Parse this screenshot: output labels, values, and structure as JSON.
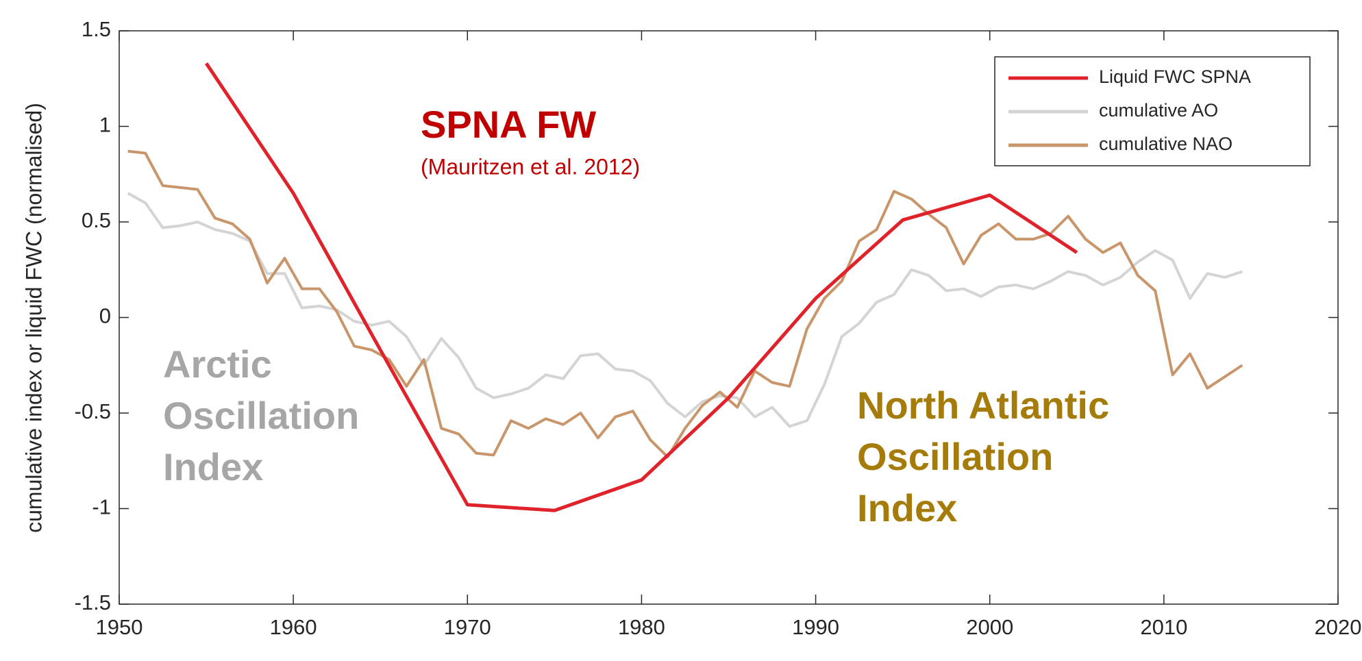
{
  "chart_data": {
    "type": "line",
    "ylabel": "cumulative index or liquid FWC (normalised)",
    "xlim": [
      1950,
      2020
    ],
    "xticks": [
      1950,
      1960,
      1970,
      1980,
      1990,
      2000,
      2010,
      2020
    ],
    "ylim": [
      -1.5,
      1.5
    ],
    "yticks": [
      -1.5,
      -1,
      -0.5,
      0,
      0.5,
      1,
      1.5
    ],
    "grid": false,
    "legend": "upper right",
    "series": [
      {
        "name": "Liquid FWC SPNA",
        "color": "#e0232b",
        "x": [
          1955,
          1960,
          1965,
          1970,
          1975,
          1980,
          1985,
          1990,
          1995,
          2000,
          2005
        ],
        "values": [
          1.33,
          0.65,
          -0.17,
          -0.98,
          -1.01,
          -0.85,
          -0.42,
          0.1,
          0.51,
          0.64,
          0.34
        ]
      },
      {
        "name": "cumulative AO",
        "color": "#d4d4d4",
        "x": [
          1950.5,
          1951.5,
          1952.5,
          1953.5,
          1954.5,
          1955.5,
          1956.5,
          1957.5,
          1958.5,
          1959.5,
          1960.5,
          1961.5,
          1962.5,
          1963.5,
          1964.5,
          1965.5,
          1966.5,
          1967.5,
          1968.5,
          1969.5,
          1970.5,
          1971.5,
          1972.5,
          1973.5,
          1974.5,
          1975.5,
          1976.5,
          1977.5,
          1978.5,
          1979.5,
          1980.5,
          1981.5,
          1982.5,
          1983.5,
          1984.5,
          1985.5,
          1986.5,
          1987.5,
          1988.5,
          1989.5,
          1990.5,
          1991.5,
          1992.5,
          1993.5,
          1994.5,
          1995.5,
          1996.5,
          1997.5,
          1998.5,
          1999.5,
          2000.5,
          2001.5,
          2002.5,
          2003.5,
          2004.5,
          2005.5,
          2006.5,
          2007.5,
          2008.5,
          2009.5,
          2010.5,
          2011.5,
          2012.5,
          2013.5,
          2014.5
        ],
        "values": [
          0.65,
          0.6,
          0.47,
          0.48,
          0.5,
          0.46,
          0.44,
          0.4,
          0.23,
          0.23,
          0.05,
          0.06,
          0.04,
          -0.02,
          -0.04,
          -0.02,
          -0.1,
          -0.25,
          -0.11,
          -0.21,
          -0.37,
          -0.42,
          -0.4,
          -0.37,
          -0.3,
          -0.32,
          -0.2,
          -0.19,
          -0.27,
          -0.28,
          -0.33,
          -0.45,
          -0.52,
          -0.44,
          -0.41,
          -0.42,
          -0.52,
          -0.47,
          -0.57,
          -0.54,
          -0.35,
          -0.1,
          -0.03,
          0.08,
          0.12,
          0.25,
          0.22,
          0.14,
          0.15,
          0.11,
          0.16,
          0.17,
          0.15,
          0.19,
          0.24,
          0.22,
          0.17,
          0.21,
          0.29,
          0.35,
          0.3,
          0.1,
          0.23,
          0.21,
          0.24
        ]
      },
      {
        "name": "cumulative NAO",
        "color": "#c8966a",
        "x": [
          1950.5,
          1951.5,
          1952.5,
          1953.5,
          1954.5,
          1955.5,
          1956.5,
          1957.5,
          1958.5,
          1959.5,
          1960.5,
          1961.5,
          1962.5,
          1963.5,
          1964.5,
          1965.5,
          1966.5,
          1967.5,
          1968.5,
          1969.5,
          1970.5,
          1971.5,
          1972.5,
          1973.5,
          1974.5,
          1975.5,
          1976.5,
          1977.5,
          1978.5,
          1979.5,
          1980.5,
          1981.5,
          1982.5,
          1983.5,
          1984.5,
          1985.5,
          1986.5,
          1987.5,
          1988.5,
          1989.5,
          1990.5,
          1991.5,
          1992.5,
          1993.5,
          1994.5,
          1995.5,
          1996.5,
          1997.5,
          1998.5,
          1999.5,
          2000.5,
          2001.5,
          2002.5,
          2003.5,
          2004.5,
          2005.5,
          2006.5,
          2007.5,
          2008.5,
          2009.5,
          2010.5,
          2011.5,
          2012.5,
          2013.5,
          2014.5
        ],
        "values": [
          0.87,
          0.86,
          0.69,
          0.68,
          0.67,
          0.52,
          0.49,
          0.41,
          0.18,
          0.31,
          0.15,
          0.15,
          0.03,
          -0.15,
          -0.17,
          -0.22,
          -0.36,
          -0.22,
          -0.58,
          -0.61,
          -0.71,
          -0.72,
          -0.54,
          -0.58,
          -0.53,
          -0.56,
          -0.5,
          -0.63,
          -0.52,
          -0.49,
          -0.64,
          -0.73,
          -0.58,
          -0.46,
          -0.39,
          -0.47,
          -0.28,
          -0.34,
          -0.36,
          -0.06,
          0.1,
          0.19,
          0.4,
          0.46,
          0.66,
          0.62,
          0.54,
          0.47,
          0.28,
          0.43,
          0.49,
          0.41,
          0.41,
          0.44,
          0.53,
          0.41,
          0.34,
          0.39,
          0.22,
          0.14,
          -0.3,
          -0.19,
          -0.37,
          -0.31,
          -0.25
        ]
      }
    ],
    "annotations": [
      {
        "text": [
          "SPNA FW"
        ],
        "color": "#c00000"
      },
      {
        "text": [
          "(Mauritzen et al. 2012)"
        ],
        "color": "#c00000"
      },
      {
        "text": [
          "Arctic",
          "Oscillation",
          "Index"
        ],
        "color": "#a6a6a6"
      },
      {
        "text": [
          "North Atlantic",
          "Oscillation",
          "Index"
        ],
        "color": "#a57c0a"
      }
    ]
  }
}
